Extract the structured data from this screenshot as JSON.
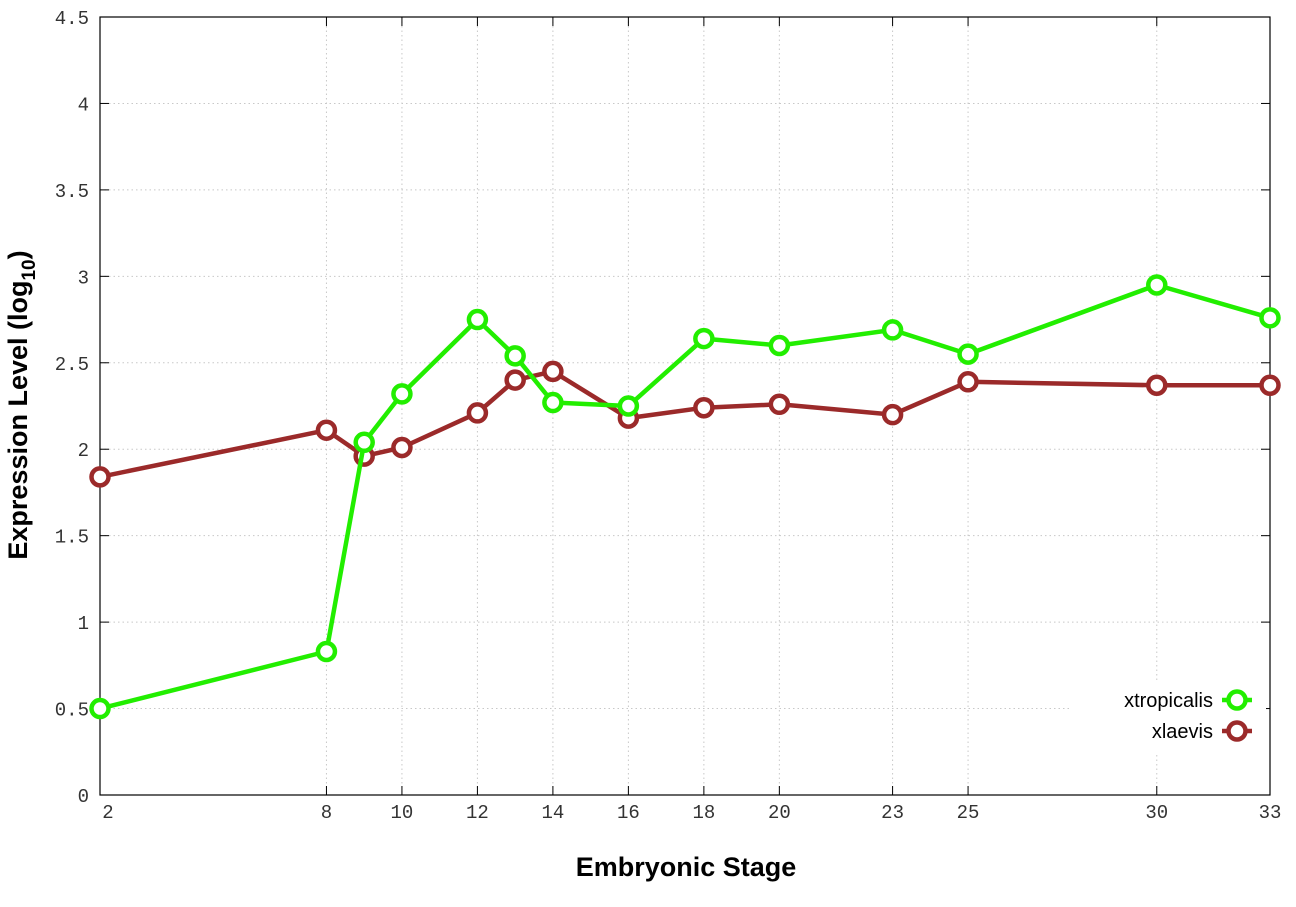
{
  "chart_data": {
    "type": "line",
    "xlabel": "Embryonic Stage",
    "ylabel_main": "Expression Level (log",
    "ylabel_sub": "10",
    "ylabel_close": ")",
    "ylim": [
      0,
      4.5
    ],
    "xlim": [
      2,
      33
    ],
    "grid": true,
    "legend_position": "bottom-right",
    "x_ticks": [
      2,
      8,
      10,
      12,
      14,
      16,
      18,
      20,
      23,
      25,
      30,
      33
    ],
    "x_tick_labels": [
      "2",
      "8",
      "10",
      "12",
      "14",
      "16",
      "18",
      "20",
      "23",
      "25",
      "30",
      "33"
    ],
    "y_ticks": [
      0,
      0.5,
      1,
      1.5,
      2,
      2.5,
      3,
      3.5,
      4,
      4.5
    ],
    "y_tick_labels": [
      "0",
      "0.5",
      "1",
      "1.5",
      "2",
      "2.5",
      "3",
      "3.5",
      "4",
      "4.5"
    ],
    "series": [
      {
        "name": "xtropicalis",
        "color": "#22ee00",
        "x": [
          2,
          8,
          9,
          10,
          12,
          13,
          14,
          16,
          18,
          20,
          23,
          25,
          30,
          33
        ],
        "y": [
          0.5,
          0.83,
          2.04,
          2.32,
          2.75,
          2.54,
          2.27,
          2.25,
          2.64,
          2.6,
          2.69,
          2.55,
          2.95,
          2.76
        ]
      },
      {
        "name": "xlaevis",
        "color": "#9b2a2a",
        "x": [
          2,
          8,
          9,
          10,
          12,
          13,
          14,
          16,
          18,
          20,
          23,
          25,
          30,
          33
        ],
        "y": [
          1.84,
          2.11,
          1.96,
          2.01,
          2.21,
          2.4,
          2.45,
          2.18,
          2.24,
          2.26,
          2.2,
          2.39,
          2.37,
          2.37
        ]
      }
    ]
  }
}
